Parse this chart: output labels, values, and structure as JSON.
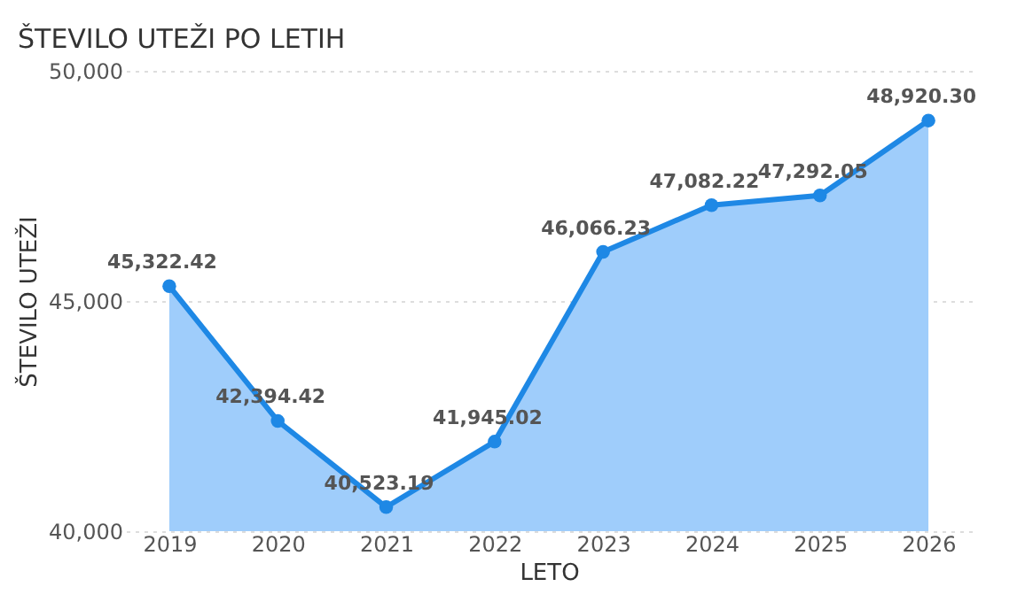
{
  "chart_data": {
    "type": "area",
    "title": "ŠTEVILO UTEŽI PO LETIH",
    "xlabel": "LETO",
    "ylabel": "ŠTEVILO UTEŽI",
    "categories": [
      "2019",
      "2020",
      "2021",
      "2022",
      "2023",
      "2024",
      "2025",
      "2026"
    ],
    "series": [
      {
        "color": "#1e88e5",
        "values": [
          45322.42,
          42394.42,
          40523.19,
          41945.02,
          46066.23,
          47082.22,
          47292.05,
          48920.3
        ],
        "value_labels": [
          "45,322.42",
          "42,394.42",
          "40,523.19",
          "41,945.02",
          "46,066.23",
          "47,082.22",
          "47,292.05",
          "48,920.30"
        ]
      }
    ],
    "ylim": [
      40000,
      50000
    ],
    "yticks": [
      {
        "value": 40000,
        "label": "40,000"
      },
      {
        "value": 45000,
        "label": "45,000"
      },
      {
        "value": 50000,
        "label": "50,000"
      }
    ],
    "grid": "y",
    "marker": "circle",
    "line_style": "solid"
  }
}
